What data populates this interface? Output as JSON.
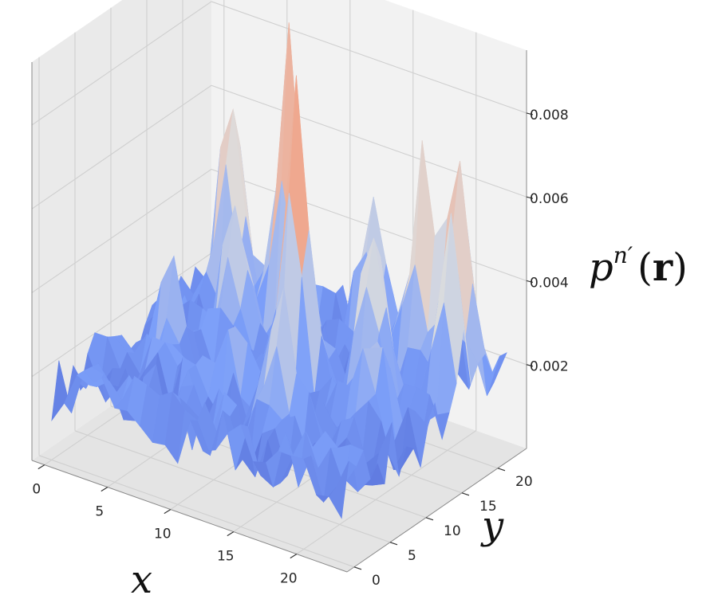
{
  "chart_data": {
    "type": "surface",
    "colormap": "coolwarm",
    "xlabel": "x",
    "ylabel": "y",
    "zlabel": {
      "base": "p",
      "superscript": "n′",
      "open": "(",
      "arg": "r",
      "close": ")"
    },
    "x_ticks": [
      "0",
      "5",
      "10",
      "15",
      "20"
    ],
    "y_ticks": [
      "0",
      "5",
      "10",
      "15",
      "20"
    ],
    "z_ticks": [
      "0.002",
      "0.004",
      "0.006",
      "0.008"
    ],
    "xlim": [
      -1,
      24
    ],
    "ylim": [
      -1,
      24
    ],
    "zlim": [
      0,
      0.0095
    ],
    "grid": true,
    "peaks": [
      {
        "x": 3,
        "y": 20,
        "z": 0.0068
      },
      {
        "x": 8,
        "y": 19,
        "z": 0.0083
      },
      {
        "x": 12,
        "y": 13,
        "z": 0.0092
      },
      {
        "x": 18,
        "y": 20,
        "z": 0.0062
      },
      {
        "x": 21,
        "y": 20,
        "z": 0.0068
      },
      {
        "x": 22,
        "y": 17,
        "z": 0.0052
      },
      {
        "x": 17,
        "y": 15,
        "z": 0.0058
      },
      {
        "x": 13,
        "y": 22,
        "z": 0.0048
      },
      {
        "x": 6,
        "y": 15,
        "z": 0.0045
      },
      {
        "x": 15,
        "y": 6,
        "z": 0.0042
      },
      {
        "x": 10,
        "y": 8,
        "z": 0.0035
      },
      {
        "x": 4,
        "y": 10,
        "z": 0.0032
      },
      {
        "x": 19,
        "y": 11,
        "z": 0.0036
      }
    ],
    "baseline_z": 0.0015,
    "noise_amplitude": 0.0016
  }
}
